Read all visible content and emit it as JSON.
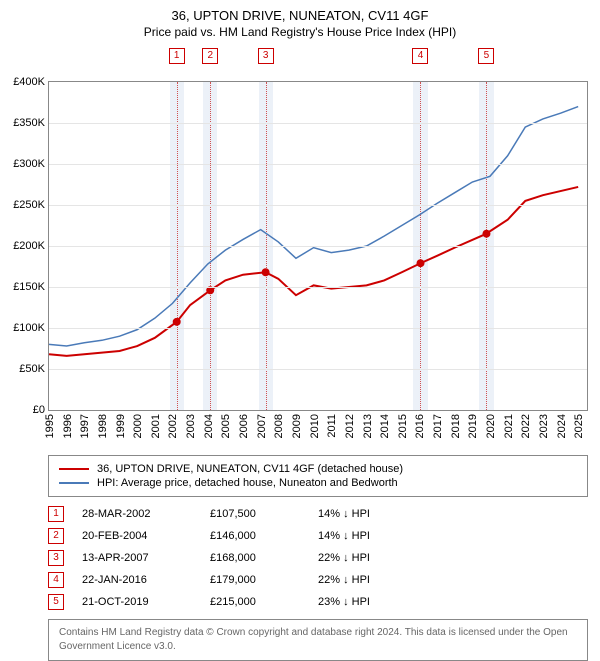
{
  "title": "36, UPTON DRIVE, NUNEATON, CV11 4GF",
  "subtitle": "Price paid vs. HM Land Registry's House Price Index (HPI)",
  "chart": {
    "type": "line",
    "background_color": "#ffffff",
    "grid_color": "#e5e5e5",
    "border_color": "#888888",
    "y": {
      "min": 0,
      "max": 400000,
      "step": 50000,
      "labels": [
        "£0",
        "£50K",
        "£100K",
        "£150K",
        "£200K",
        "£250K",
        "£300K",
        "£350K",
        "£400K"
      ]
    },
    "x": {
      "min": 1995,
      "max": 2025.5,
      "labels": [
        "1995",
        "1996",
        "1997",
        "1998",
        "1999",
        "2000",
        "2001",
        "2002",
        "2003",
        "2004",
        "2005",
        "2006",
        "2007",
        "2008",
        "2009",
        "2010",
        "2011",
        "2012",
        "2013",
        "2014",
        "2015",
        "2016",
        "2017",
        "2018",
        "2019",
        "2020",
        "2021",
        "2022",
        "2023",
        "2024",
        "2025"
      ]
    },
    "series": [
      {
        "name": "36, UPTON DRIVE, NUNEATON, CV11 4GF (detached house)",
        "color": "#cc0000",
        "width": 2,
        "points": [
          [
            1995,
            68000
          ],
          [
            1996,
            66000
          ],
          [
            1997,
            68000
          ],
          [
            1998,
            70000
          ],
          [
            1999,
            72000
          ],
          [
            2000,
            78000
          ],
          [
            2001,
            88000
          ],
          [
            2002.24,
            107500
          ],
          [
            2003,
            128000
          ],
          [
            2004.14,
            146000
          ],
          [
            2005,
            158000
          ],
          [
            2006,
            165000
          ],
          [
            2007.28,
            168000
          ],
          [
            2008,
            160000
          ],
          [
            2009,
            140000
          ],
          [
            2010,
            152000
          ],
          [
            2011,
            148000
          ],
          [
            2012,
            150000
          ],
          [
            2013,
            152000
          ],
          [
            2014,
            158000
          ],
          [
            2015,
            168000
          ],
          [
            2016.06,
            179000
          ],
          [
            2017,
            188000
          ],
          [
            2018,
            198000
          ],
          [
            2019.8,
            215000
          ],
          [
            2020,
            218000
          ],
          [
            2021,
            232000
          ],
          [
            2022,
            255000
          ],
          [
            2023,
            262000
          ],
          [
            2024,
            267000
          ],
          [
            2025,
            272000
          ]
        ],
        "markers": [
          {
            "x": 2002.24,
            "y": 107500
          },
          {
            "x": 2004.14,
            "y": 146000
          },
          {
            "x": 2007.28,
            "y": 168000
          },
          {
            "x": 2016.06,
            "y": 179000
          },
          {
            "x": 2019.8,
            "y": 215000
          }
        ],
        "marker_color": "#cc0000",
        "marker_size": 4
      },
      {
        "name": "HPI: Average price, detached house, Nuneaton and Bedworth",
        "color": "#4a7ab8",
        "width": 1.5,
        "points": [
          [
            1995,
            80000
          ],
          [
            1996,
            78000
          ],
          [
            1997,
            82000
          ],
          [
            1998,
            85000
          ],
          [
            1999,
            90000
          ],
          [
            2000,
            98000
          ],
          [
            2001,
            112000
          ],
          [
            2002,
            130000
          ],
          [
            2003,
            155000
          ],
          [
            2004,
            178000
          ],
          [
            2005,
            195000
          ],
          [
            2006,
            208000
          ],
          [
            2007,
            220000
          ],
          [
            2008,
            205000
          ],
          [
            2009,
            185000
          ],
          [
            2010,
            198000
          ],
          [
            2011,
            192000
          ],
          [
            2012,
            195000
          ],
          [
            2013,
            200000
          ],
          [
            2014,
            212000
          ],
          [
            2015,
            225000
          ],
          [
            2016,
            238000
          ],
          [
            2017,
            252000
          ],
          [
            2018,
            265000
          ],
          [
            2019,
            278000
          ],
          [
            2020,
            285000
          ],
          [
            2021,
            310000
          ],
          [
            2022,
            345000
          ],
          [
            2023,
            355000
          ],
          [
            2024,
            362000
          ],
          [
            2025,
            370000
          ]
        ]
      }
    ],
    "bands": [
      {
        "idx": "1",
        "x": 2002.24,
        "band_color": "#eaf0f7",
        "line_color": "#d05050"
      },
      {
        "idx": "2",
        "x": 2004.14,
        "band_color": "#eaf0f7",
        "line_color": "#d05050"
      },
      {
        "idx": "3",
        "x": 2007.28,
        "band_color": "#eaf0f7",
        "line_color": "#d05050"
      },
      {
        "idx": "4",
        "x": 2016.06,
        "band_color": "#eaf0f7",
        "line_color": "#d05050"
      },
      {
        "idx": "5",
        "x": 2019.8,
        "band_color": "#eaf0f7",
        "line_color": "#d05050"
      }
    ],
    "band_halfwidth_years": 0.4
  },
  "legend": {
    "label_fontsize": 11
  },
  "sales": [
    {
      "idx": "1",
      "date": "28-MAR-2002",
      "price": "£107,500",
      "diff": "14% ↓ HPI"
    },
    {
      "idx": "2",
      "date": "20-FEB-2004",
      "price": "£146,000",
      "diff": "14% ↓ HPI"
    },
    {
      "idx": "3",
      "date": "13-APR-2007",
      "price": "£168,000",
      "diff": "22% ↓ HPI"
    },
    {
      "idx": "4",
      "date": "22-JAN-2016",
      "price": "£179,000",
      "diff": "22% ↓ HPI"
    },
    {
      "idx": "5",
      "date": "21-OCT-2019",
      "price": "£215,000",
      "diff": "23% ↓ HPI"
    }
  ],
  "attribution": "Contains HM Land Registry data © Crown copyright and database right 2024. This data is licensed under the Open Government Licence v3.0."
}
